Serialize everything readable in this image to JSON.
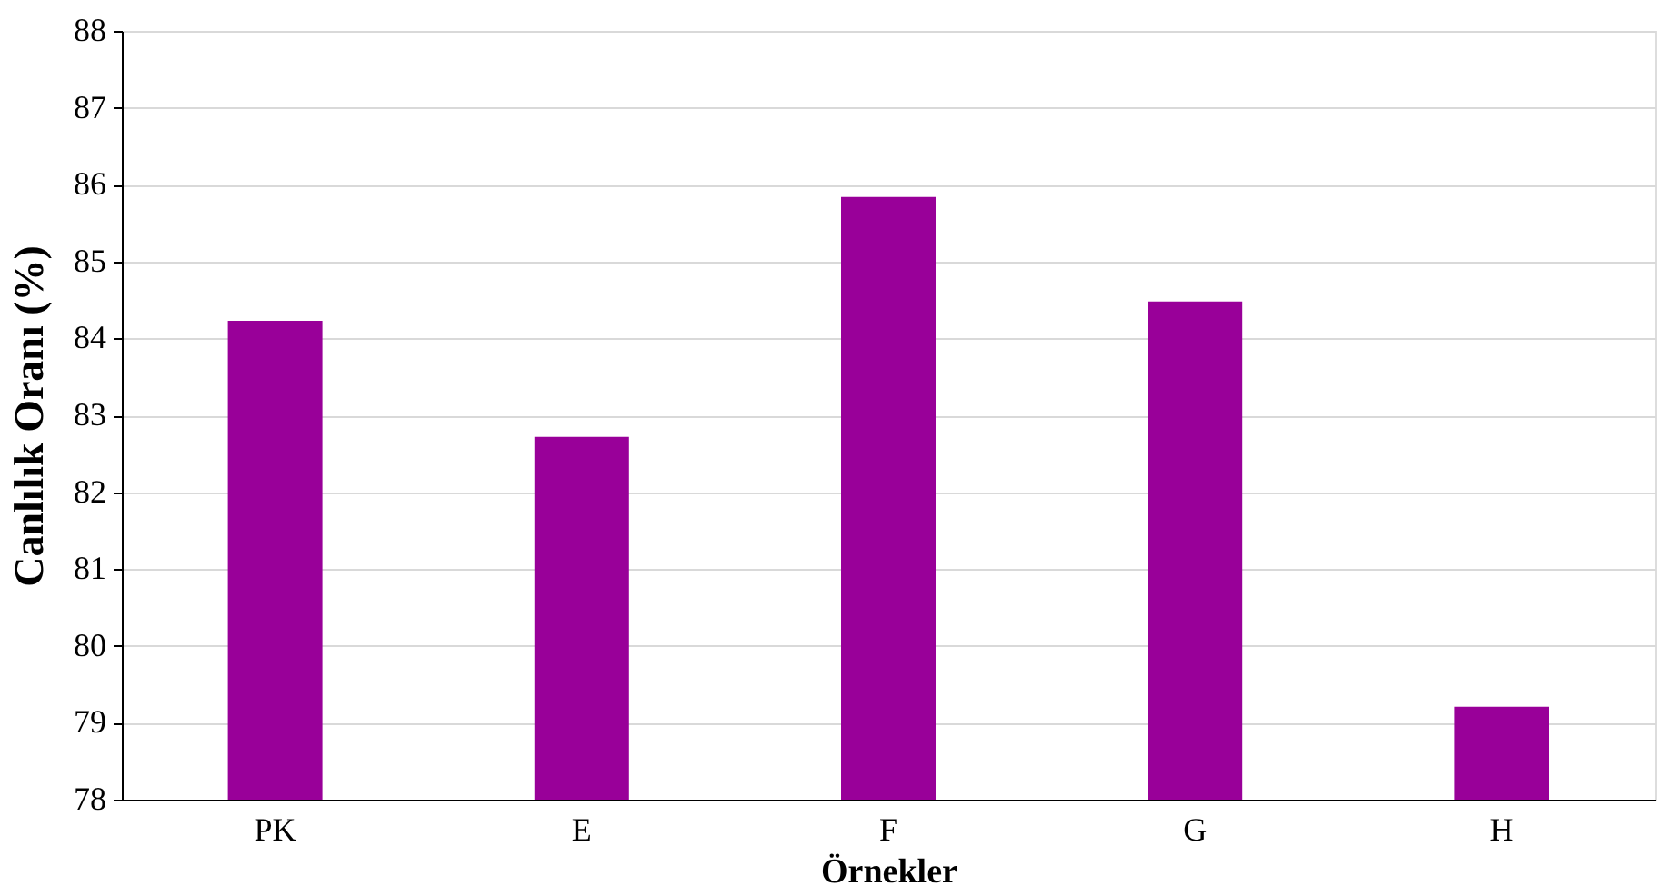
{
  "chart_data": {
    "type": "bar",
    "xlabel": "Örnekler",
    "ylabel": "Canlılık Oranı (%)",
    "categories": [
      "PK",
      "E",
      "F",
      "G",
      "H"
    ],
    "values": [
      84.23,
      82.72,
      85.84,
      84.48,
      79.21
    ],
    "color": "#990099",
    "ylim": [
      78,
      88
    ],
    "yticks": [
      78,
      79,
      80,
      81,
      82,
      83,
      84,
      85,
      86,
      87,
      88
    ],
    "grid": "y"
  }
}
